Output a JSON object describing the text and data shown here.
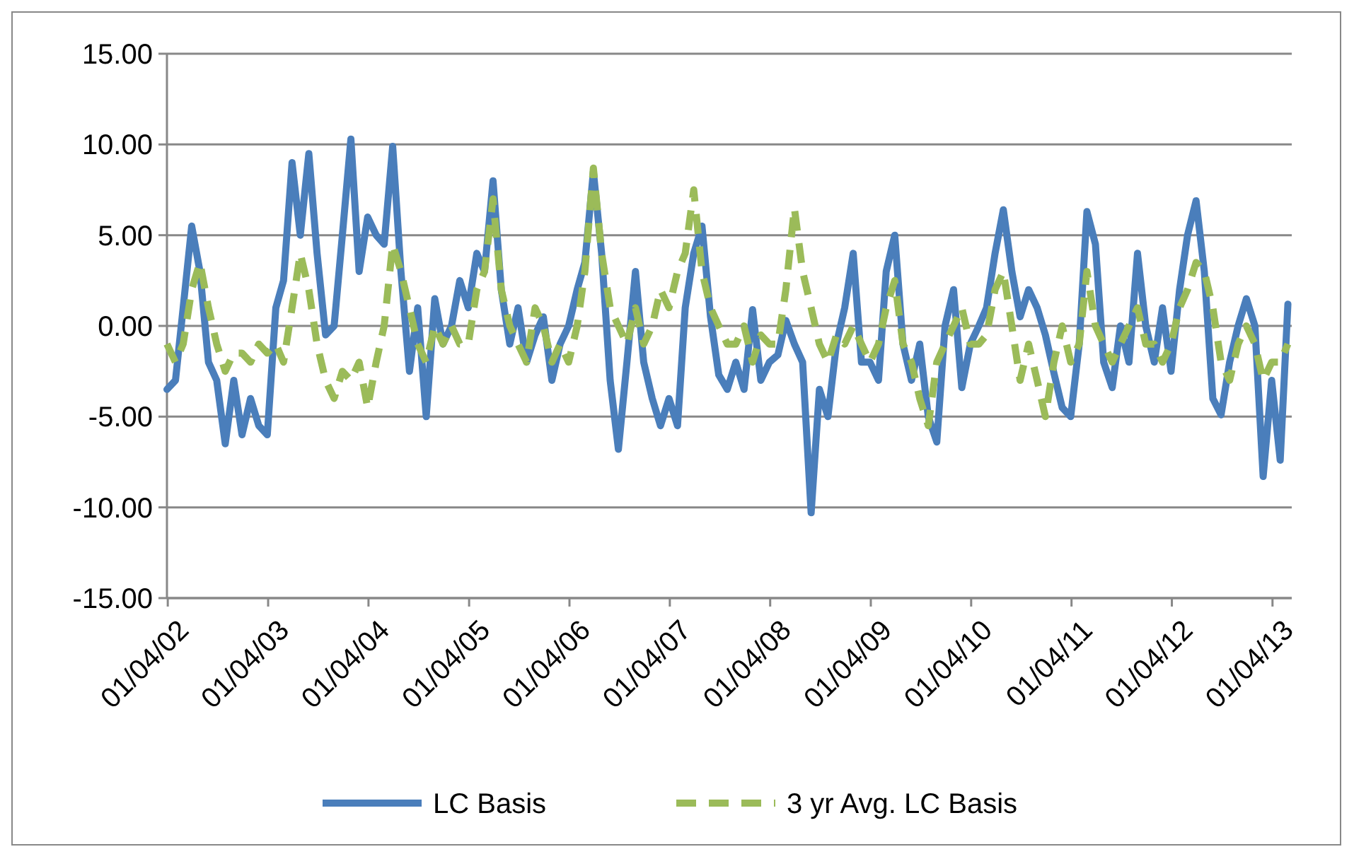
{
  "chart_data": {
    "type": "line",
    "x": [
      "2002-01",
      "2002-02",
      "2002-03",
      "2002-04",
      "2002-05",
      "2002-06",
      "2002-07",
      "2002-08",
      "2002-09",
      "2002-10",
      "2002-11",
      "2002-12",
      "2003-01",
      "2003-02",
      "2003-03",
      "2003-04",
      "2003-05",
      "2003-06",
      "2003-07",
      "2003-08",
      "2003-09",
      "2003-10",
      "2003-11",
      "2003-12",
      "2004-01",
      "2004-02",
      "2004-03",
      "2004-04",
      "2004-05",
      "2004-06",
      "2004-07",
      "2004-08",
      "2004-09",
      "2004-10",
      "2004-11",
      "2004-12",
      "2005-01",
      "2005-02",
      "2005-03",
      "2005-04",
      "2005-05",
      "2005-06",
      "2005-07",
      "2005-08",
      "2005-09",
      "2005-10",
      "2005-11",
      "2005-12",
      "2006-01",
      "2006-02",
      "2006-03",
      "2006-04",
      "2006-05",
      "2006-06",
      "2006-07",
      "2006-08",
      "2006-09",
      "2006-10",
      "2006-11",
      "2006-12",
      "2007-01",
      "2007-02",
      "2007-03",
      "2007-04",
      "2007-05",
      "2007-06",
      "2007-07",
      "2007-08",
      "2007-09",
      "2007-10",
      "2007-11",
      "2007-12",
      "2008-01",
      "2008-02",
      "2008-03",
      "2008-04",
      "2008-05",
      "2008-06",
      "2008-07",
      "2008-08",
      "2008-09",
      "2008-10",
      "2008-11",
      "2008-12",
      "2009-01",
      "2009-02",
      "2009-03",
      "2009-04",
      "2009-05",
      "2009-06",
      "2009-07",
      "2009-08",
      "2009-09",
      "2009-10",
      "2009-11",
      "2009-12",
      "2010-01",
      "2010-02",
      "2010-03",
      "2010-04",
      "2010-05",
      "2010-06",
      "2010-07",
      "2010-08",
      "2010-09",
      "2010-10",
      "2010-11",
      "2010-12",
      "2011-01",
      "2011-02",
      "2011-03",
      "2011-04",
      "2011-05",
      "2011-06",
      "2011-07",
      "2011-08",
      "2011-09",
      "2011-10",
      "2011-11",
      "2011-12",
      "2012-01",
      "2012-02",
      "2012-03",
      "2012-04",
      "2012-05",
      "2012-06",
      "2012-07",
      "2012-08",
      "2012-09",
      "2012-10",
      "2012-11",
      "2012-12",
      "2013-01",
      "2013-02",
      "2013-03"
    ],
    "series": [
      {
        "name": "LC Basis",
        "color": "#4a7ebb",
        "line_style": "solid",
        "values": [
          -3.5,
          -3,
          1,
          5.5,
          3,
          -2,
          -3,
          -6.5,
          -3,
          -6,
          -4,
          -5.5,
          -6,
          1,
          2.5,
          9,
          5,
          9.5,
          4,
          -0.5,
          0,
          5,
          10.3,
          3,
          6,
          5,
          4.5,
          9.9,
          3,
          -2.5,
          1,
          -5,
          1.5,
          -1,
          0,
          2.5,
          1,
          4,
          3,
          8,
          2,
          -1,
          1,
          -2,
          -0.5,
          0.5,
          -3,
          -1,
          0,
          2,
          3.5,
          8.5,
          4,
          -3,
          -6.8,
          -2,
          3,
          -2,
          -4,
          -5.5,
          -4,
          -5.5,
          1,
          4,
          5.5,
          0.5,
          -2.7,
          -3.5,
          -2,
          -3.5,
          0.9,
          -3,
          -2,
          -1.6,
          0.3,
          -1,
          -2,
          -10.3,
          -3.5,
          -5,
          -1,
          1,
          4,
          -2,
          -2,
          -3,
          3,
          5,
          -1,
          -3,
          -1,
          -5,
          -6.4,
          0,
          2,
          -3.4,
          -1,
          0,
          1,
          4,
          6.4,
          3,
          0.5,
          2,
          1,
          -0.5,
          -2.6,
          -4.5,
          -5,
          -1,
          6.3,
          4.5,
          -2,
          -3.4,
          0,
          -2,
          4,
          0,
          -2,
          1,
          -2.5,
          2,
          5,
          6.9,
          3,
          -4,
          -4.9,
          -2,
          0,
          1.5,
          0,
          -8.3,
          -3,
          -7.4,
          1.2
        ]
      },
      {
        "name": "3 yr Avg. LC Basis",
        "color": "#9bbb59",
        "line_style": "dashed",
        "values": [
          -1,
          -2,
          -1,
          2,
          3.5,
          1,
          -1,
          -2.5,
          -1.5,
          -1.5,
          -2,
          -1,
          -1.5,
          -1,
          -2,
          1,
          4,
          2,
          -1,
          -3,
          -4,
          -2.5,
          -3,
          -2,
          -4.5,
          -2,
          0,
          4.5,
          3,
          1,
          -1,
          -2,
          0,
          -1,
          0,
          -1,
          -1,
          2,
          3,
          7,
          2,
          0,
          -1,
          -2,
          1,
          0,
          -2,
          -1,
          -2,
          0,
          3,
          8.7,
          4,
          1,
          0,
          -1,
          1,
          -1,
          0,
          2,
          1,
          3,
          4,
          7.5,
          3,
          1,
          0,
          -1,
          -1,
          0,
          -2,
          -0.5,
          -1,
          -1,
          2,
          6.5,
          3,
          1,
          -1,
          -2,
          -0.5,
          -1,
          0,
          -1,
          -2,
          -1,
          1,
          2.5,
          -1,
          -2,
          -4,
          -5.5,
          -2,
          -1,
          0,
          1,
          -1,
          -1,
          -0.5,
          2,
          3,
          0,
          -3,
          -1,
          -3,
          -5,
          -2,
          0,
          -2,
          -1,
          3,
          0,
          -1,
          -2,
          -1,
          0,
          1,
          -1,
          -1,
          -2,
          -1,
          1,
          2,
          3.5,
          3,
          1,
          -2,
          -3,
          -1,
          0,
          -1,
          -3,
          -2,
          -2,
          -1
        ]
      }
    ],
    "xlim": [
      "2002-01-01",
      "2013-03-15"
    ],
    "xticks": [
      {
        "value": "2002-01-04",
        "label": "01/04/02"
      },
      {
        "value": "2003-01-04",
        "label": "01/04/03"
      },
      {
        "value": "2004-01-04",
        "label": "01/04/04"
      },
      {
        "value": "2005-01-04",
        "label": "01/04/05"
      },
      {
        "value": "2006-01-04",
        "label": "01/04/06"
      },
      {
        "value": "2007-01-04",
        "label": "01/04/07"
      },
      {
        "value": "2008-01-04",
        "label": "01/04/08"
      },
      {
        "value": "2009-01-04",
        "label": "01/04/09"
      },
      {
        "value": "2010-01-04",
        "label": "01/04/10"
      },
      {
        "value": "2011-01-04",
        "label": "01/04/11"
      },
      {
        "value": "2012-01-04",
        "label": "01/04/12"
      },
      {
        "value": "2013-01-04",
        "label": "01/04/13"
      }
    ],
    "ylim": [
      -15,
      15
    ],
    "yticks": [
      {
        "value": -15,
        "label": "-15.00"
      },
      {
        "value": -10,
        "label": "-10.00"
      },
      {
        "value": -5,
        "label": "-5.00"
      },
      {
        "value": 0,
        "label": "0.00"
      },
      {
        "value": 5,
        "label": "5.00"
      },
      {
        "value": 10,
        "label": "10.00"
      },
      {
        "value": 15,
        "label": "15.00"
      }
    ],
    "grid": "y",
    "legend": "bottom",
    "marker": "none"
  }
}
